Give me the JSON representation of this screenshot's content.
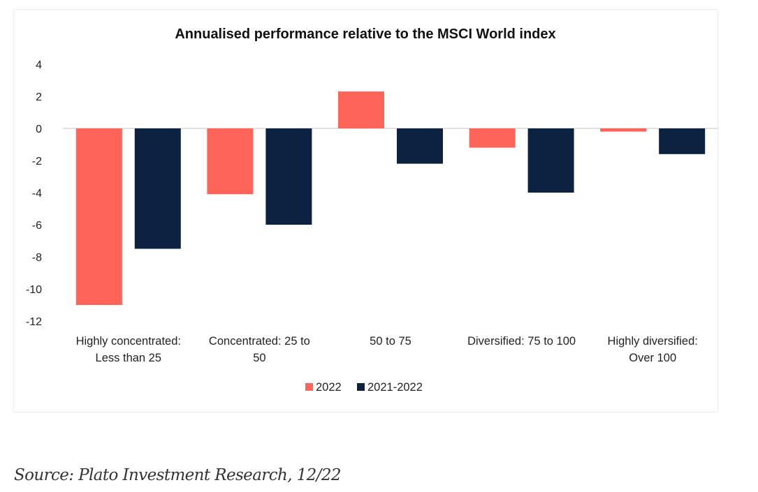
{
  "chart_data": {
    "type": "bar",
    "title": "Annualised performance relative to the MSCI World index",
    "xlabel": "",
    "ylabel": "",
    "categories": [
      [
        "Highly concentrated:",
        "Less than 25"
      ],
      [
        "Concentrated: 25 to",
        "50"
      ],
      [
        "50 to 75"
      ],
      [
        "Diversified: 75 to 100"
      ],
      [
        "Highly diversified:",
        "Over 100"
      ]
    ],
    "series": [
      {
        "name": "2022",
        "color": "#FF6459",
        "values": [
          -11.0,
          -4.1,
          2.3,
          -1.2,
          -0.2
        ]
      },
      {
        "name": "2021-2022",
        "color": "#0D2240",
        "values": [
          -7.5,
          -6.0,
          -2.2,
          -4.0,
          -1.6
        ]
      }
    ],
    "ylim": [
      -12,
      4
    ],
    "yticks": [
      4,
      2,
      0,
      -2,
      -4,
      -6,
      -8,
      -10,
      -12
    ],
    "grid": false,
    "legend_position": "bottom-center"
  },
  "source": "Source: Plato Investment Research, 12/22"
}
